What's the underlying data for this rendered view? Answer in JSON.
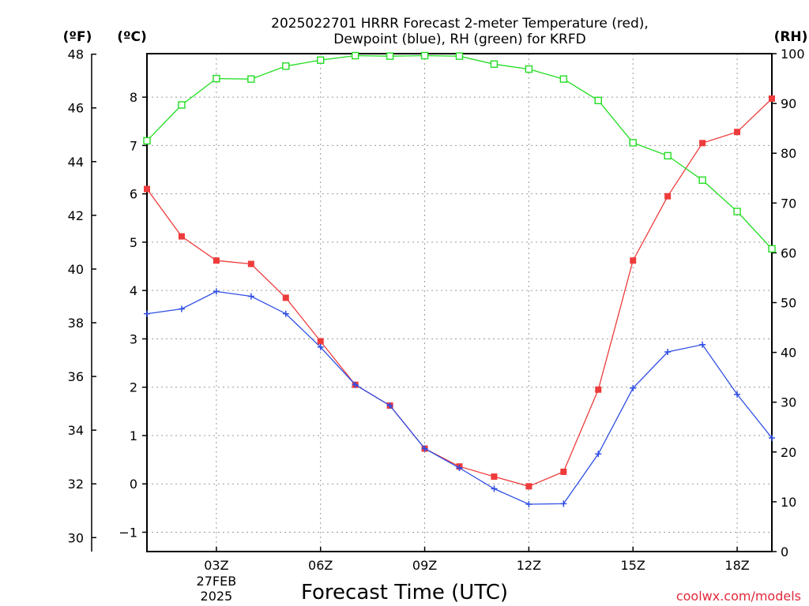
{
  "chart_data": {
    "type": "line",
    "title": {
      "line1": "2025022701 HRRR Forecast 2-meter Temperature (red),",
      "line2": "Dewpoint (blue), RH (green) for KRFD"
    },
    "xlabel": "Forecast Time (UTC)",
    "credit": "coolwx.com/models",
    "units": {
      "fahrenheit": "(ºF)",
      "celsius": "(ºC)",
      "rh": "(RH)"
    },
    "x": [
      1,
      2,
      3,
      4,
      5,
      6,
      7,
      8,
      9,
      10,
      11,
      12,
      13,
      14,
      15,
      16,
      17,
      18,
      19
    ],
    "xlim": [
      1,
      19
    ],
    "x_ticks": [
      {
        "value": 3,
        "label": "03Z",
        "sub1": "27FEB",
        "sub2": "2025"
      },
      {
        "value": 6,
        "label": "06Z",
        "sub1": "",
        "sub2": ""
      },
      {
        "value": 9,
        "label": "09Z",
        "sub1": "",
        "sub2": ""
      },
      {
        "value": 12,
        "label": "12Z",
        "sub1": "",
        "sub2": ""
      },
      {
        "value": 15,
        "label": "15Z",
        "sub1": "",
        "sub2": ""
      },
      {
        "value": 18,
        "label": "18Z",
        "sub1": "",
        "sub2": ""
      }
    ],
    "ylim_c": [
      -1.4,
      8.9
    ],
    "yticks_c": [
      -1,
      0,
      1,
      2,
      3,
      4,
      5,
      6,
      7,
      8
    ],
    "ylim_f": [
      29.48,
      48.02
    ],
    "yticks_f": [
      30,
      32,
      34,
      36,
      38,
      40,
      42,
      44,
      46,
      48
    ],
    "ylim_rh": [
      0,
      100
    ],
    "yticks_rh": [
      0,
      10,
      20,
      30,
      40,
      50,
      60,
      70,
      80,
      90,
      100
    ],
    "grid": true,
    "series": [
      {
        "key": "temperature",
        "axis": "celsius",
        "color": "#ee3b3b",
        "marker": "filled-square",
        "values": [
          6.1,
          5.12,
          4.62,
          4.55,
          3.85,
          2.95,
          2.05,
          1.62,
          0.73,
          0.36,
          0.15,
          -0.05,
          0.25,
          1.95,
          4.62,
          5.95,
          7.05,
          7.28,
          7.97
        ]
      },
      {
        "key": "dewpoint",
        "axis": "celsius",
        "color": "#2f4ee6",
        "marker": "plus",
        "values": [
          3.52,
          3.62,
          3.98,
          3.88,
          3.52,
          2.83,
          2.05,
          1.62,
          0.73,
          0.33,
          -0.1,
          -0.42,
          -0.41,
          0.62,
          1.98,
          2.73,
          2.88,
          1.85,
          0.95
        ]
      },
      {
        "key": "rh",
        "axis": "rh",
        "color": "#22dd22",
        "marker": "open-square",
        "values": [
          82.5,
          89.7,
          95,
          94.9,
          97.5,
          98.7,
          99.6,
          99.5,
          99.6,
          99.5,
          97.9,
          96.9,
          94.9,
          90.6,
          82.1,
          79.5,
          74.6,
          68.3,
          60.8
        ]
      }
    ]
  }
}
